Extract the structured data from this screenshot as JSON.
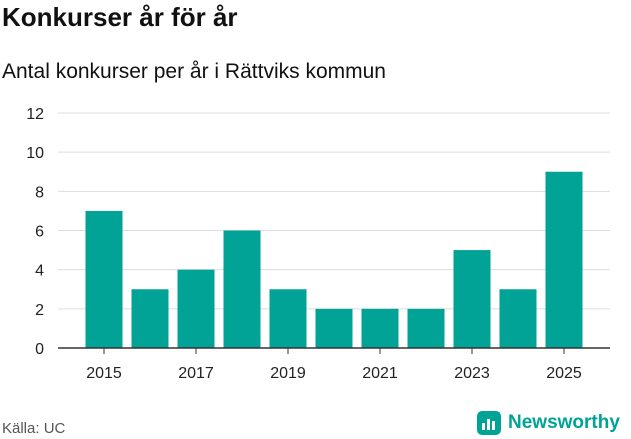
{
  "header": {
    "title": "Konkurser år för år",
    "subtitle": "Antal konkurser per år i Rättviks kommun"
  },
  "footer": {
    "source": "Källa: UC",
    "brand": "Newsworthy"
  },
  "colors": {
    "bar": "#00a396",
    "grid": "#dddddd",
    "axis": "#333333",
    "brand": "#00a396"
  },
  "chart_data": {
    "type": "bar",
    "title": "Konkurser år för år",
    "subtitle": "Antal konkurser per år i Rättviks kommun",
    "xlabel": "",
    "ylabel": "",
    "categories": [
      2015,
      2016,
      2017,
      2018,
      2019,
      2020,
      2021,
      2022,
      2023,
      2024,
      2025
    ],
    "values": [
      7,
      3,
      4,
      6,
      3,
      2,
      2,
      2,
      5,
      3,
      9
    ],
    "ylim": [
      0,
      12
    ],
    "yticks": [
      0,
      2,
      4,
      6,
      8,
      10,
      12
    ],
    "xticks": [
      2015,
      2017,
      2019,
      2021,
      2023,
      2025
    ],
    "grid": true,
    "legend": "none"
  }
}
